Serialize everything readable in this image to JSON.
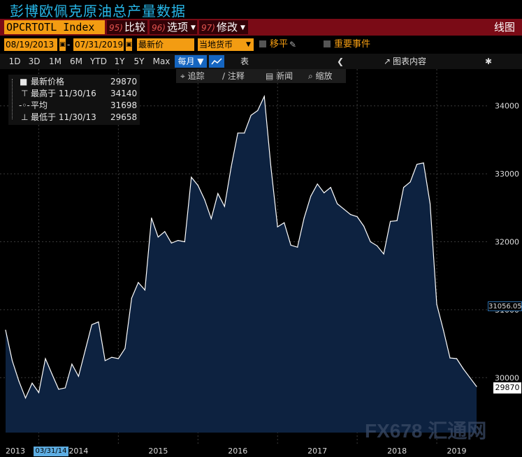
{
  "page": {
    "title": "彭博欧佩克原油总产量数据"
  },
  "command_bar": {
    "ticker": "OPCRTOTL Index",
    "menus": [
      {
        "num": "95)",
        "label": "比较",
        "arrow": ""
      },
      {
        "num": "96)",
        "label": "选项",
        "arrow": "▼"
      },
      {
        "num": "97)",
        "label": "修改",
        "arrow": "▼"
      }
    ],
    "chart_label": "线图"
  },
  "options": {
    "start_date": "08/19/2013",
    "end_date": "07/31/2019",
    "price_field": "最新价",
    "currency": "当地货币",
    "move_label": "移平",
    "events_label": "重要事件"
  },
  "ranges": {
    "buttons": [
      "1D",
      "3D",
      "1M",
      "6M",
      "YTD",
      "1Y",
      "5Y",
      "Max"
    ],
    "frequency": "每月",
    "table_label": "表",
    "chart_content_label": "图表内容"
  },
  "sub_toolbar": {
    "track": "追踪",
    "annotate": "注释",
    "news": "新闻",
    "zoom": "缩放"
  },
  "legend": {
    "rows": [
      {
        "label": "最新价格",
        "value": "29870"
      },
      {
        "label": "最高于 11/30/16",
        "value": "34140"
      },
      {
        "label": "平均",
        "value": "31698"
      },
      {
        "label": "最低于 11/30/13",
        "value": "29658"
      }
    ]
  },
  "tags": {
    "last_price": "29870",
    "crosshair_value": "31056.05",
    "crosshair_date": "03/31/14"
  },
  "watermark": "FX678 汇通网",
  "colors": {
    "accent": "#f39c12",
    "command_bar": "#7a0b16",
    "area_fill": "#0d2240",
    "line": "#ffffff"
  },
  "chart_data": {
    "type": "area",
    "x": [
      "2013-08",
      "2013-09",
      "2013-10",
      "2013-11",
      "2013-12",
      "2014-01",
      "2014-02",
      "2014-03",
      "2014-04",
      "2014-05",
      "2014-06",
      "2014-07",
      "2014-08",
      "2014-09",
      "2014-10",
      "2014-11",
      "2014-12",
      "2015-01",
      "2015-02",
      "2015-03",
      "2015-04",
      "2015-05",
      "2015-06",
      "2015-07",
      "2015-08",
      "2015-09",
      "2015-10",
      "2015-11",
      "2015-12",
      "2016-01",
      "2016-02",
      "2016-03",
      "2016-04",
      "2016-05",
      "2016-06",
      "2016-07",
      "2016-08",
      "2016-09",
      "2016-10",
      "2016-11",
      "2016-12",
      "2017-01",
      "2017-02",
      "2017-03",
      "2017-04",
      "2017-05",
      "2017-06",
      "2017-07",
      "2017-08",
      "2017-09",
      "2017-10",
      "2017-11",
      "2017-12",
      "2018-01",
      "2018-02",
      "2018-03",
      "2018-04",
      "2018-05",
      "2018-06",
      "2018-07",
      "2018-08",
      "2018-09",
      "2018-10",
      "2018-11",
      "2018-12",
      "2019-01",
      "2019-02",
      "2019-03",
      "2019-04",
      "2019-05",
      "2019-06",
      "2019-07"
    ],
    "series": [
      {
        "values": [
          30700,
          30250,
          29950,
          29700,
          29920,
          29780,
          30280,
          30050,
          29830,
          29850,
          30200,
          30020,
          30400,
          30780,
          30820,
          30250,
          30300,
          30280,
          30430,
          31170,
          31400,
          31290,
          32350,
          32070,
          32150,
          31980,
          32020,
          32000,
          32950,
          32830,
          32620,
          32340,
          32710,
          32520,
          33100,
          33600,
          33600,
          33860,
          33930,
          34140,
          33100,
          32220,
          32280,
          31950,
          31920,
          32350,
          32670,
          32850,
          32720,
          32800,
          32560,
          32480,
          32400,
          32370,
          32230,
          32000,
          31940,
          31820,
          32300,
          32310,
          32800,
          32880,
          33140,
          33160,
          32560,
          31080,
          30700,
          30290,
          30280,
          30130,
          30000,
          29870
        ]
      }
    ],
    "ylim": [
      29500,
      34500
    ],
    "y_ticks": [
      30000,
      31000,
      32000,
      33000,
      34000
    ],
    "x_ticks": [
      "2013",
      "2014",
      "2015",
      "2016",
      "2017",
      "2018",
      "2019"
    ],
    "grid": true
  }
}
